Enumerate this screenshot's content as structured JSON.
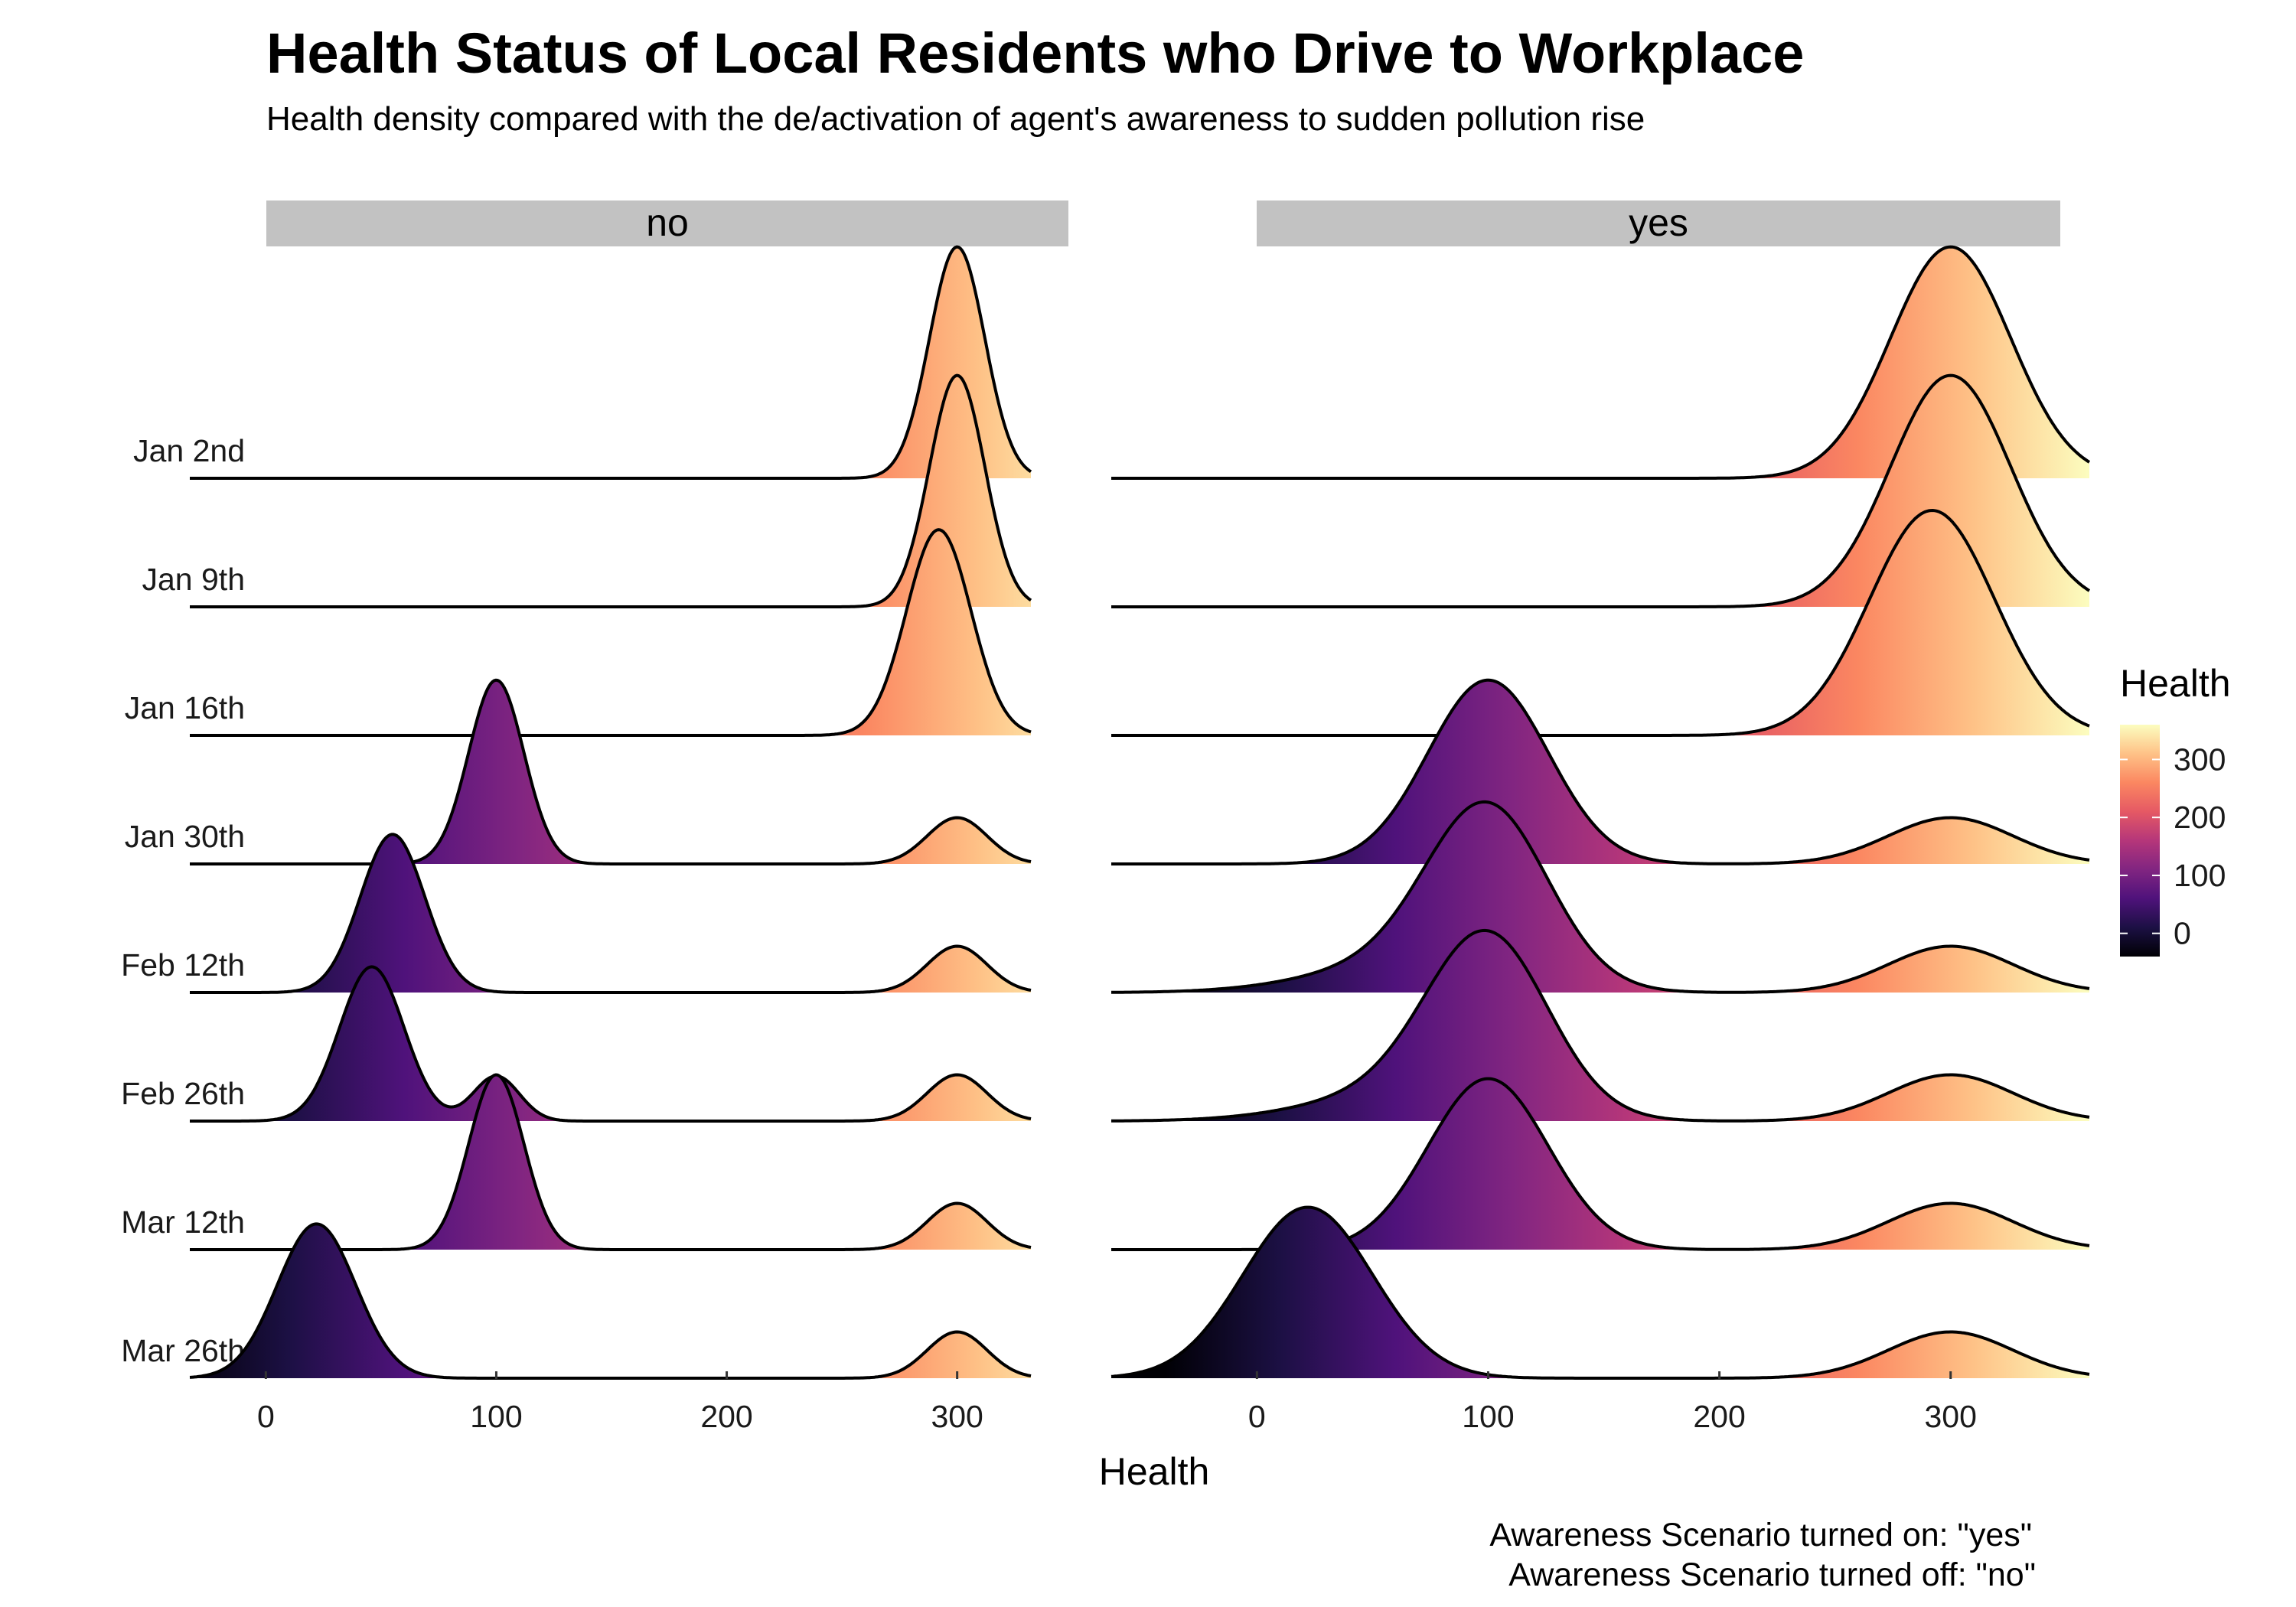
{
  "chart_data": {
    "type": "ridgeline",
    "title": "Health Status of Local Residents who Drive to Workplace",
    "subtitle": "Health density compared with the de/activation of agent's awareness to sudden pollution rise",
    "xlabel": "Health",
    "caption": [
      "Awareness Scenario turned on: \"yes\"",
      "Awareness Scenario turned off: \"no\""
    ],
    "categories": [
      "Jan 2nd",
      "Jan 9th",
      "Jan 16th",
      "Jan 30th",
      "Feb 12th",
      "Feb 26th",
      "Mar 12th",
      "Mar 26th"
    ],
    "x_ticks": [
      0,
      100,
      200,
      300
    ],
    "fill_scale": {
      "title": "Health",
      "palette": "magma",
      "range": [
        -40,
        360
      ],
      "ticks": [
        0,
        100,
        200,
        300
      ],
      "colors": [
        "#000004",
        "#1c1044",
        "#4f127b",
        "#812581",
        "#b5367a",
        "#e55964",
        "#fb8761",
        "#fec287",
        "#fcfdbf"
      ]
    },
    "facets": [
      {
        "label": "no",
        "xlim": [
          -33,
          332
        ],
        "ridges": [
          {
            "date": "Jan 2nd",
            "peaks": [
              {
                "mu": 300,
                "sigma": 12,
                "h": 1.8
              }
            ]
          },
          {
            "date": "Jan 9th",
            "peaks": [
              {
                "mu": 300,
                "sigma": 12,
                "h": 1.8
              }
            ]
          },
          {
            "date": "Jan 16th",
            "peaks": [
              {
                "mu": 292,
                "sigma": 14,
                "h": 1.6
              }
            ]
          },
          {
            "date": "Jan 30th",
            "peaks": [
              {
                "mu": 100,
                "sigma": 12,
                "h": 1.43
              },
              {
                "mu": 300,
                "sigma": 13,
                "h": 0.36
              }
            ]
          },
          {
            "date": "Feb 12th",
            "peaks": [
              {
                "mu": 55,
                "sigma": 14,
                "h": 1.23
              },
              {
                "mu": 300,
                "sigma": 13,
                "h": 0.36
              }
            ]
          },
          {
            "date": "Feb 26th",
            "peaks": [
              {
                "mu": 46,
                "sigma": 14,
                "h": 1.2
              },
              {
                "mu": 100,
                "sigma": 10,
                "h": 0.35
              },
              {
                "mu": 300,
                "sigma": 13,
                "h": 0.36
              }
            ]
          },
          {
            "date": "Mar 12th",
            "peaks": [
              {
                "mu": 100,
                "sigma": 12,
                "h": 1.36
              },
              {
                "mu": 300,
                "sigma": 13,
                "h": 0.36
              }
            ]
          },
          {
            "date": "Mar 26th",
            "peaks": [
              {
                "mu": 22,
                "sigma": 17,
                "h": 1.2
              },
              {
                "mu": 300,
                "sigma": 13,
                "h": 0.36
              }
            ]
          }
        ]
      },
      {
        "label": "yes",
        "xlim": [
          -63,
          360
        ],
        "ridges": [
          {
            "date": "Jan 2nd",
            "peaks": [
              {
                "mu": 300,
                "sigma": 26,
                "h": 1.8
              }
            ]
          },
          {
            "date": "Jan 9th",
            "peaks": [
              {
                "mu": 300,
                "sigma": 26,
                "h": 1.8
              }
            ]
          },
          {
            "date": "Jan 16th",
            "peaks": [
              {
                "mu": 292,
                "sigma": 27,
                "h": 1.75
              }
            ]
          },
          {
            "date": "Jan 30th",
            "peaks": [
              {
                "mu": 100,
                "sigma": 26,
                "h": 1.43
              },
              {
                "mu": 300,
                "sigma": 27,
                "h": 0.36
              }
            ]
          },
          {
            "date": "Feb 12th",
            "peaks": [
              {
                "mu": 100,
                "sigma": 26,
                "h": 1.33
              },
              {
                "mu": 65,
                "sigma": 40,
                "h": 0.22
              },
              {
                "mu": 300,
                "sigma": 27,
                "h": 0.36
              }
            ]
          },
          {
            "date": "Feb 26th",
            "peaks": [
              {
                "mu": 100,
                "sigma": 26,
                "h": 1.33
              },
              {
                "mu": 65,
                "sigma": 40,
                "h": 0.22
              },
              {
                "mu": 300,
                "sigma": 27,
                "h": 0.36
              }
            ]
          },
          {
            "date": "Mar 12th",
            "peaks": [
              {
                "mu": 100,
                "sigma": 26,
                "h": 1.33
              },
              {
                "mu": 300,
                "sigma": 27,
                "h": 0.36
              }
            ]
          },
          {
            "date": "Mar 26th",
            "peaks": [
              {
                "mu": 22,
                "sigma": 28,
                "h": 1.33
              },
              {
                "mu": 300,
                "sigma": 27,
                "h": 0.36
              }
            ]
          }
        ]
      }
    ]
  }
}
